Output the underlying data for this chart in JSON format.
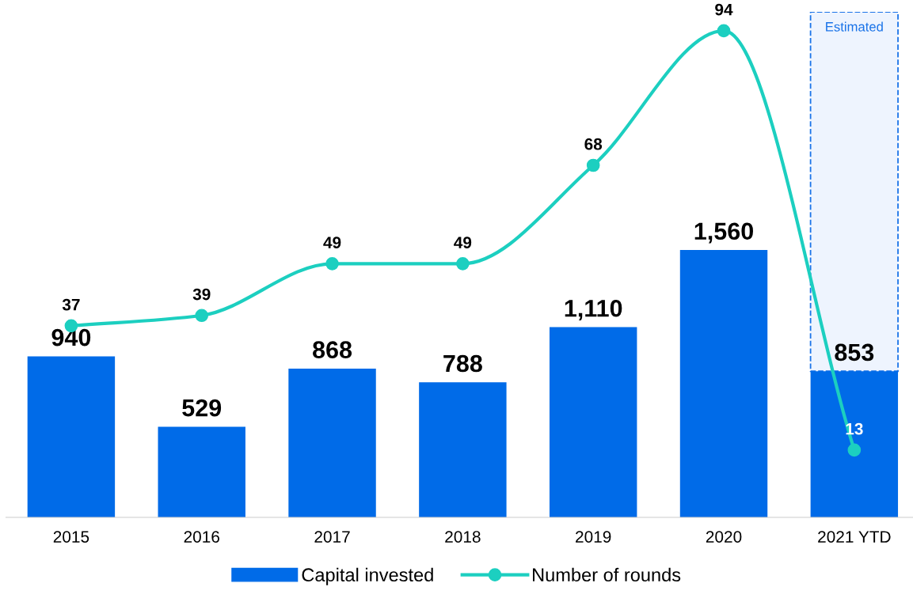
{
  "chart_data": {
    "type": "bar",
    "categories": [
      "2015",
      "2016",
      "2017",
      "2018",
      "2019",
      "2020",
      "2021 YTD"
    ],
    "stacked": true,
    "tick_labels": "x",
    "grid": false,
    "legend": "bottom",
    "marker": "circle",
    "line_style": "solid",
    "series": [
      {
        "name": "Capital invested",
        "color": "#006be8",
        "values": [
          940,
          529,
          868,
          788,
          1110,
          1560,
          853
        ],
        "value_labels": [
          "940",
          "529",
          "868",
          "788",
          "1,110",
          "1,560",
          "853"
        ]
      },
      {
        "color": "#eef4fe",
        "line_style": "dashed",
        "values": [
          null,
          null,
          null,
          null,
          null,
          null,
          2097
        ]
      },
      {
        "name": "Number of rounds",
        "type": "line",
        "axis": "y2",
        "color": "#1ccfc0",
        "values": [
          37,
          39,
          49,
          49,
          68,
          94,
          13
        ],
        "value_labels": [
          "37",
          "39",
          "49",
          "49",
          "68",
          "94",
          "13"
        ]
      }
    ],
    "annotations": [
      "Estimated"
    ]
  }
}
